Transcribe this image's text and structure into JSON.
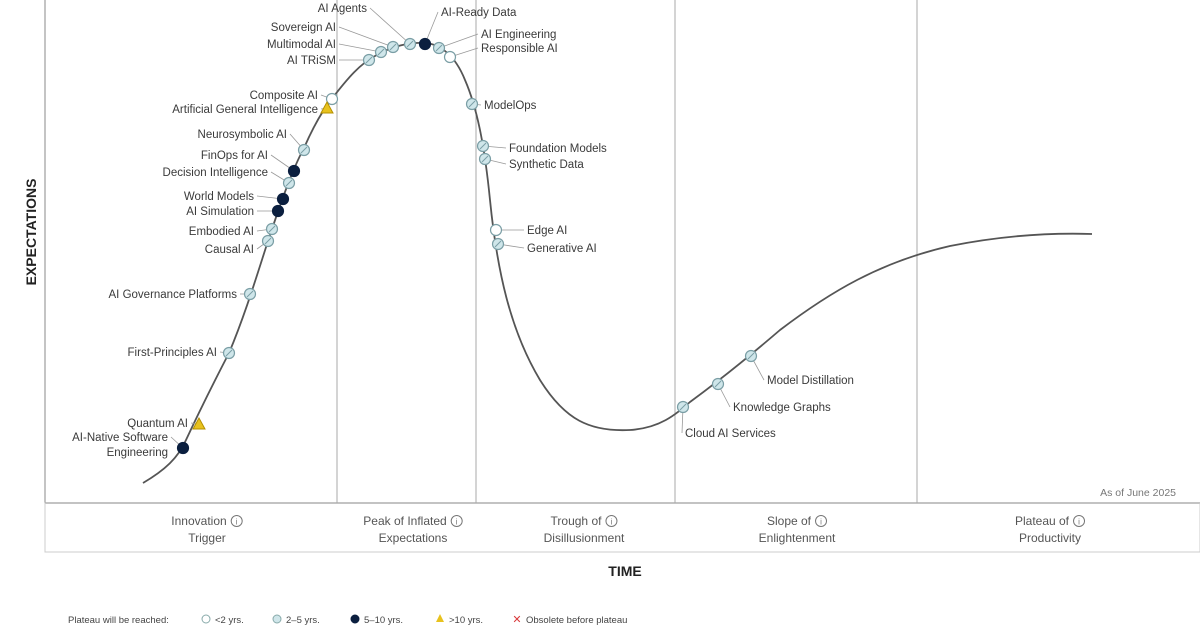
{
  "axes": {
    "y_label": "EXPECTATIONS",
    "x_label": "TIME"
  },
  "as_of": "As of June 2025",
  "phases": [
    {
      "line1": "Innovation",
      "line2": "Trigger"
    },
    {
      "line1": "Peak of Inflated",
      "line2": "Expectations"
    },
    {
      "line1": "Trough of",
      "line2": "Disillusionment"
    },
    {
      "line1": "Slope of",
      "line2": "Enlightenment"
    },
    {
      "line1": "Plateau of",
      "line2": "Productivity"
    }
  ],
  "colors": {
    "lt2": "#ffffff",
    "2to5": "#cfe6ea",
    "5to10": "#0b1f3f",
    "gt10": "#e8c21e",
    "obsolete": "#d9393b",
    "curve": "#555555"
  },
  "legend": {
    "title": "Plateau will be reached:",
    "items": [
      {
        "key": "lt2",
        "label": "<2 yrs."
      },
      {
        "key": "2to5",
        "label": "2–5 yrs."
      },
      {
        "key": "5to10",
        "label": "5–10 yrs."
      },
      {
        "key": "gt10",
        "label": ">10 yrs."
      },
      {
        "key": "obsolete",
        "label": "Obsolete before plateau"
      }
    ]
  },
  "technologies": [
    {
      "name": "AI Agents",
      "plateau": "2to5"
    },
    {
      "name": "AI-Ready Data",
      "plateau": "5to10"
    },
    {
      "name": "Sovereign AI",
      "plateau": "2to5"
    },
    {
      "name": "Multimodal AI",
      "plateau": "2to5"
    },
    {
      "name": "AI TRiSM",
      "plateau": "2to5"
    },
    {
      "name": "AI Engineering",
      "plateau": "2to5"
    },
    {
      "name": "Responsible AI",
      "plateau": "lt2"
    },
    {
      "name": "Composite AI",
      "plateau": "lt2"
    },
    {
      "name": "Artificial General Intelligence",
      "plateau": "gt10"
    },
    {
      "name": "Neurosymbolic AI",
      "plateau": "2to5"
    },
    {
      "name": "FinOps for AI",
      "plateau": "5to10"
    },
    {
      "name": "Decision Intelligence",
      "plateau": "2to5"
    },
    {
      "name": "World Models",
      "plateau": "5to10"
    },
    {
      "name": "AI Simulation",
      "plateau": "5to10"
    },
    {
      "name": "Embodied AI",
      "plateau": "2to5"
    },
    {
      "name": "Causal AI",
      "plateau": "2to5"
    },
    {
      "name": "AI Governance Platforms",
      "plateau": "2to5"
    },
    {
      "name": "First-Principles AI",
      "plateau": "2to5"
    },
    {
      "name": "Quantum AI",
      "plateau": "gt10"
    },
    {
      "name": "AI-Native Software Engineering",
      "plateau": "5to10"
    },
    {
      "name": "ModelOps",
      "plateau": "2to5"
    },
    {
      "name": "Foundation Models",
      "plateau": "2to5"
    },
    {
      "name": "Synthetic Data",
      "plateau": "2to5"
    },
    {
      "name": "Edge AI",
      "plateau": "lt2"
    },
    {
      "name": "Generative AI",
      "plateau": "2to5"
    },
    {
      "name": "Cloud AI Services",
      "plateau": "2to5"
    },
    {
      "name": "Knowledge Graphs",
      "plateau": "2to5"
    },
    {
      "name": "Model Distillation",
      "plateau": "2to5"
    }
  ]
}
